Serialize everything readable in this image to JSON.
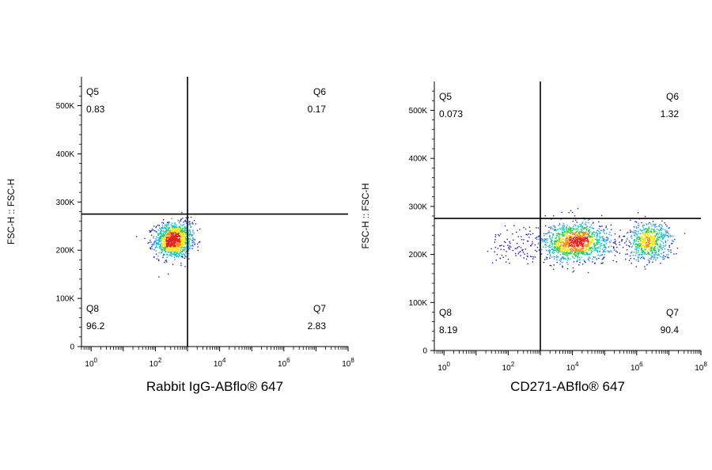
{
  "chart_data": [
    {
      "type": "scatter",
      "subtype": "flow-cytometry-density-dot-plot",
      "xlabel": "Rabbit IgG-ABflo® 647",
      "ylabel": "FSC-H :: FSC-H",
      "x_scale": "log",
      "xlim": [
        0.5,
        100000000
      ],
      "x_ticks": [
        1,
        100,
        10000,
        1000000,
        100000000
      ],
      "y_scale": "linear",
      "ylim": [
        0,
        560000
      ],
      "y_ticks": [
        0,
        100000,
        200000,
        300000,
        400000,
        500000
      ],
      "y_tick_labels": [
        "0",
        "100K",
        "200K",
        "300K",
        "400K",
        "500K"
      ],
      "gate": {
        "x": 1000,
        "y": 275000
      },
      "quadrants": [
        {
          "name": "Q5",
          "value": "0.83",
          "position": "top-left"
        },
        {
          "name": "Q6",
          "value": "0.17",
          "position": "top-right"
        },
        {
          "name": "Q8",
          "value": "96.2",
          "position": "bottom-left"
        },
        {
          "name": "Q7",
          "value": "2.83",
          "position": "bottom-right"
        }
      ],
      "populations": [
        {
          "center_x": 350,
          "center_y": 220000,
          "log_spread_x": 0.28,
          "spread_y": 18000,
          "count": 1100
        },
        {
          "center_x": 900,
          "center_y": 235000,
          "log_spread_x": 0.22,
          "spread_y": 20000,
          "count": 120
        }
      ],
      "colormap": [
        "#1a1ac8",
        "#1e90ff",
        "#00c8c8",
        "#22cc44",
        "#ffe600",
        "#ff8800",
        "#e02020"
      ]
    },
    {
      "type": "scatter",
      "subtype": "flow-cytometry-density-dot-plot",
      "xlabel": "CD271-ABflo® 647",
      "ylabel": "FSC-H :: FSC-H",
      "x_scale": "log",
      "xlim": [
        0.5,
        100000000
      ],
      "x_ticks": [
        1,
        100,
        10000,
        1000000,
        100000000
      ],
      "y_scale": "linear",
      "ylim": [
        0,
        560000
      ],
      "y_ticks": [
        0,
        100000,
        200000,
        300000,
        400000,
        500000
      ],
      "y_tick_labels": [
        "0",
        "100K",
        "200K",
        "300K",
        "400K",
        "500K"
      ],
      "gate": {
        "x": 1000,
        "y": 275000
      },
      "quadrants": [
        {
          "name": "Q5",
          "value": "0.073",
          "position": "top-left"
        },
        {
          "name": "Q6",
          "value": "1.32",
          "position": "top-right"
        },
        {
          "name": "Q8",
          "value": "8.19",
          "position": "bottom-left"
        },
        {
          "name": "Q7",
          "value": "90.4",
          "position": "bottom-right"
        }
      ],
      "populations": [
        {
          "center_x": 12000,
          "center_y": 225000,
          "log_spread_x": 0.55,
          "spread_y": 20000,
          "count": 1300
        },
        {
          "center_x": 2500000,
          "center_y": 225000,
          "log_spread_x": 0.35,
          "spread_y": 20000,
          "count": 650
        },
        {
          "center_x": 150,
          "center_y": 220000,
          "log_spread_x": 0.45,
          "spread_y": 18000,
          "count": 90
        }
      ],
      "colormap": [
        "#1a1ac8",
        "#1e90ff",
        "#00c8c8",
        "#22cc44",
        "#ffe600",
        "#ff8800",
        "#e02020"
      ]
    }
  ]
}
